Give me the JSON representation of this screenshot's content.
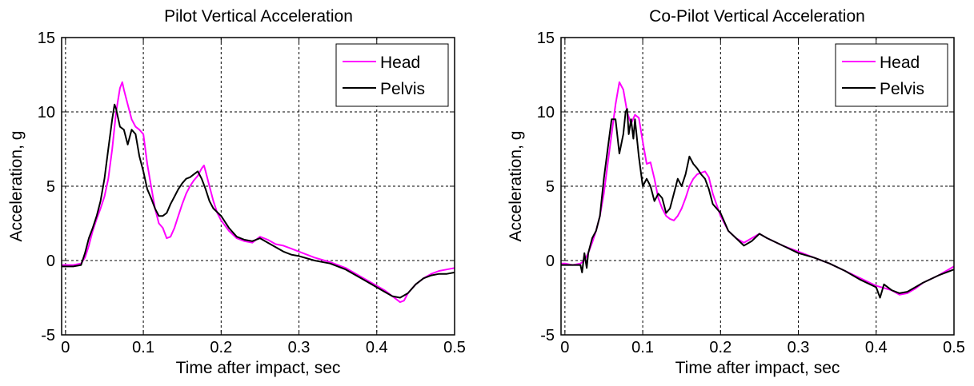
{
  "chart_data": [
    {
      "type": "line",
      "title": "Pilot Vertical Acceleration",
      "xlabel": "Time after impact, sec",
      "ylabel": "Acceleration, g",
      "xlim": [
        -0.005,
        0.5
      ],
      "ylim": [
        -5,
        15
      ],
      "xticks": [
        0,
        0.1,
        0.2,
        0.3,
        0.4,
        0.5
      ],
      "xtick_labels": [
        "0",
        "0.1",
        "0.2",
        "0.3",
        "0.4",
        "0.5"
      ],
      "yticks": [
        -5,
        0,
        5,
        10,
        15
      ],
      "ytick_labels": [
        "-5",
        "0",
        "5",
        "10",
        "15"
      ],
      "grid": true,
      "legend": "top-right",
      "series": [
        {
          "name": "Head",
          "color": "#ff00ff",
          "x": [
            -0.005,
            0.0,
            0.01,
            0.02,
            0.025,
            0.03,
            0.035,
            0.04,
            0.045,
            0.05,
            0.055,
            0.06,
            0.065,
            0.07,
            0.073,
            0.075,
            0.08,
            0.085,
            0.09,
            0.095,
            0.1,
            0.105,
            0.11,
            0.115,
            0.12,
            0.125,
            0.13,
            0.135,
            0.14,
            0.145,
            0.15,
            0.155,
            0.16,
            0.165,
            0.17,
            0.175,
            0.178,
            0.18,
            0.185,
            0.19,
            0.195,
            0.2,
            0.21,
            0.22,
            0.23,
            0.24,
            0.25,
            0.26,
            0.27,
            0.28,
            0.29,
            0.3,
            0.32,
            0.34,
            0.36,
            0.38,
            0.4,
            0.41,
            0.42,
            0.43,
            0.435,
            0.44,
            0.45,
            0.46,
            0.47,
            0.48,
            0.49,
            0.5
          ],
          "y": [
            -0.3,
            -0.3,
            -0.3,
            -0.2,
            0.2,
            1.0,
            2.0,
            2.8,
            3.5,
            4.3,
            5.5,
            7.5,
            10.0,
            11.6,
            12.0,
            11.5,
            10.5,
            9.5,
            9.0,
            8.8,
            8.5,
            6.5,
            5.0,
            3.5,
            2.5,
            2.2,
            1.5,
            1.6,
            2.2,
            3.0,
            3.8,
            4.5,
            5.0,
            5.4,
            5.7,
            6.2,
            6.4,
            6.0,
            5.0,
            4.0,
            3.2,
            2.7,
            2.0,
            1.5,
            1.3,
            1.2,
            1.6,
            1.4,
            1.1,
            1.0,
            0.8,
            0.6,
            0.2,
            -0.1,
            -0.5,
            -1.1,
            -1.7,
            -2.0,
            -2.4,
            -2.8,
            -2.7,
            -2.2,
            -1.6,
            -1.2,
            -0.9,
            -0.7,
            -0.6,
            -0.5
          ]
        },
        {
          "name": "Pelvis",
          "color": "#000000",
          "x": [
            -0.005,
            0.0,
            0.01,
            0.02,
            0.025,
            0.03,
            0.035,
            0.04,
            0.045,
            0.05,
            0.055,
            0.06,
            0.063,
            0.065,
            0.07,
            0.075,
            0.08,
            0.085,
            0.09,
            0.095,
            0.1,
            0.105,
            0.11,
            0.115,
            0.12,
            0.125,
            0.13,
            0.135,
            0.14,
            0.145,
            0.15,
            0.155,
            0.16,
            0.165,
            0.17,
            0.175,
            0.18,
            0.185,
            0.19,
            0.2,
            0.21,
            0.22,
            0.23,
            0.24,
            0.25,
            0.26,
            0.27,
            0.28,
            0.29,
            0.3,
            0.32,
            0.34,
            0.36,
            0.38,
            0.4,
            0.41,
            0.42,
            0.43,
            0.44,
            0.45,
            0.46,
            0.47,
            0.48,
            0.49,
            0.5
          ],
          "y": [
            -0.4,
            -0.4,
            -0.4,
            -0.3,
            0.5,
            1.5,
            2.2,
            3.0,
            4.0,
            5.5,
            7.5,
            9.5,
            10.5,
            10.2,
            9.0,
            8.8,
            7.8,
            8.8,
            8.5,
            7.0,
            6.0,
            4.8,
            4.2,
            3.5,
            3.0,
            3.0,
            3.2,
            3.8,
            4.3,
            4.8,
            5.2,
            5.5,
            5.6,
            5.8,
            6.0,
            5.5,
            4.8,
            4.0,
            3.5,
            3.0,
            2.2,
            1.6,
            1.4,
            1.3,
            1.5,
            1.2,
            0.9,
            0.6,
            0.4,
            0.3,
            0.0,
            -0.2,
            -0.6,
            -1.2,
            -1.8,
            -2.1,
            -2.4,
            -2.5,
            -2.2,
            -1.6,
            -1.2,
            -1.0,
            -0.9,
            -0.9,
            -0.8
          ]
        }
      ]
    },
    {
      "type": "line",
      "title": "Co-Pilot Vertical Acceleration",
      "xlabel": "Time after impact, sec",
      "ylabel": "Acceleration, g",
      "xlim": [
        -0.005,
        0.5
      ],
      "ylim": [
        -5,
        15
      ],
      "xticks": [
        0,
        0.1,
        0.2,
        0.3,
        0.4,
        0.5
      ],
      "xtick_labels": [
        "0",
        "0.1",
        "0.2",
        "0.3",
        "0.4",
        "0.5"
      ],
      "yticks": [
        -5,
        0,
        5,
        10,
        15
      ],
      "ytick_labels": [
        "-5",
        "0",
        "5",
        "10",
        "15"
      ],
      "grid": true,
      "legend": "top-right",
      "series": [
        {
          "name": "Head",
          "color": "#ff00ff",
          "x": [
            -0.005,
            0.0,
            0.01,
            0.02,
            0.025,
            0.03,
            0.035,
            0.04,
            0.045,
            0.05,
            0.055,
            0.06,
            0.065,
            0.07,
            0.075,
            0.08,
            0.085,
            0.09,
            0.095,
            0.1,
            0.105,
            0.11,
            0.115,
            0.12,
            0.125,
            0.13,
            0.135,
            0.14,
            0.145,
            0.15,
            0.155,
            0.16,
            0.165,
            0.17,
            0.175,
            0.18,
            0.185,
            0.19,
            0.2,
            0.21,
            0.22,
            0.23,
            0.24,
            0.25,
            0.26,
            0.28,
            0.3,
            0.32,
            0.34,
            0.36,
            0.38,
            0.4,
            0.42,
            0.43,
            0.44,
            0.45,
            0.46,
            0.48,
            0.5
          ],
          "y": [
            -0.2,
            -0.2,
            -0.3,
            -0.2,
            0.0,
            0.5,
            1.2,
            2.0,
            3.0,
            4.5,
            6.5,
            8.5,
            10.5,
            12.0,
            11.5,
            10.0,
            9.2,
            9.8,
            9.6,
            8.0,
            6.5,
            6.6,
            5.5,
            4.2,
            3.5,
            3.0,
            2.8,
            2.7,
            3.0,
            3.5,
            4.2,
            5.0,
            5.5,
            5.8,
            5.9,
            6.0,
            5.6,
            4.5,
            3.0,
            2.0,
            1.5,
            1.2,
            1.5,
            1.8,
            1.5,
            1.0,
            0.6,
            0.2,
            -0.2,
            -0.7,
            -1.2,
            -1.7,
            -2.0,
            -2.3,
            -2.2,
            -1.9,
            -1.5,
            -1.0,
            -0.4
          ]
        },
        {
          "name": "Pelvis",
          "color": "#000000",
          "x": [
            -0.005,
            0.0,
            0.01,
            0.02,
            0.022,
            0.025,
            0.028,
            0.03,
            0.035,
            0.04,
            0.045,
            0.05,
            0.055,
            0.06,
            0.065,
            0.07,
            0.075,
            0.078,
            0.08,
            0.082,
            0.085,
            0.088,
            0.09,
            0.095,
            0.1,
            0.105,
            0.11,
            0.115,
            0.12,
            0.125,
            0.13,
            0.135,
            0.14,
            0.145,
            0.15,
            0.155,
            0.16,
            0.165,
            0.17,
            0.175,
            0.18,
            0.185,
            0.19,
            0.2,
            0.21,
            0.22,
            0.23,
            0.24,
            0.25,
            0.26,
            0.28,
            0.3,
            0.32,
            0.34,
            0.36,
            0.38,
            0.4,
            0.405,
            0.41,
            0.42,
            0.43,
            0.44,
            0.45,
            0.46,
            0.48,
            0.5
          ],
          "y": [
            -0.3,
            -0.3,
            -0.3,
            -0.3,
            -0.8,
            0.5,
            -0.5,
            0.5,
            1.5,
            2.0,
            3.0,
            5.5,
            7.5,
            9.5,
            9.5,
            7.2,
            8.5,
            10.0,
            10.2,
            8.5,
            9.5,
            8.2,
            9.5,
            7.0,
            5.0,
            5.5,
            5.0,
            4.0,
            4.5,
            4.2,
            3.2,
            3.5,
            4.5,
            5.5,
            5.0,
            5.8,
            7.0,
            6.5,
            6.2,
            5.8,
            5.5,
            4.8,
            3.8,
            3.2,
            2.0,
            1.5,
            1.0,
            1.3,
            1.8,
            1.5,
            1.0,
            0.5,
            0.2,
            -0.2,
            -0.7,
            -1.3,
            -1.8,
            -2.5,
            -1.6,
            -2.0,
            -2.2,
            -2.1,
            -1.8,
            -1.5,
            -1.0,
            -0.6
          ]
        }
      ]
    }
  ]
}
